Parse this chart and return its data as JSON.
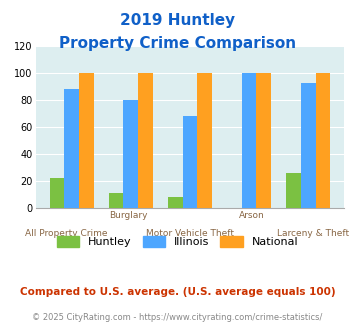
{
  "title_line1": "2019 Huntley",
  "title_line2": "Property Crime Comparison",
  "title_color": "#1060c8",
  "categories": [
    "All Property Crime",
    "Burglary",
    "Motor Vehicle Theft",
    "Arson",
    "Larceny & Theft"
  ],
  "group_labels_top": [
    "",
    "Burglary",
    "",
    "Arson",
    ""
  ],
  "group_labels_bottom": [
    "All Property Crime",
    "",
    "Motor Vehicle Theft",
    "",
    "Larceny & Theft"
  ],
  "huntley": [
    22,
    11,
    8,
    0,
    26
  ],
  "illinois": [
    88,
    80,
    68,
    100,
    93
  ],
  "national": [
    100,
    100,
    100,
    100,
    100
  ],
  "huntley_color": "#7bc142",
  "illinois_color": "#4da6ff",
  "national_color": "#ffa020",
  "bar_width": 0.25,
  "ylim": [
    0,
    120
  ],
  "yticks": [
    0,
    20,
    40,
    60,
    80,
    100,
    120
  ],
  "bg_color": "#ddeef0",
  "fig_bg": "#ffffff",
  "footnote1": "Compared to U.S. average. (U.S. average equals 100)",
  "footnote2": "© 2025 CityRating.com - https://www.cityrating.com/crime-statistics/",
  "footnote1_color": "#cc3300",
  "footnote2_color": "#888888",
  "legend_labels": [
    "Huntley",
    "Illinois",
    "National"
  ],
  "xlabel_color": "#886644"
}
